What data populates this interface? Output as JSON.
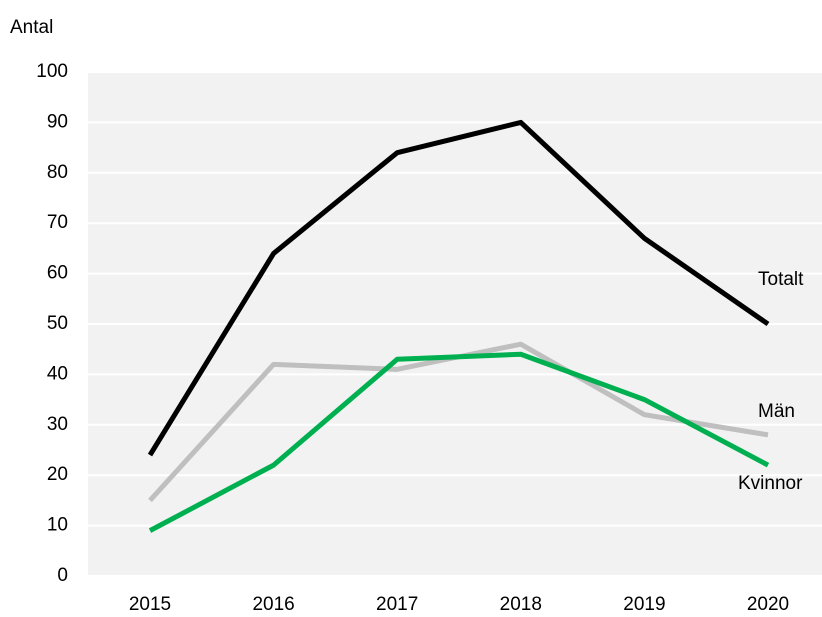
{
  "chart_data": {
    "type": "line",
    "y_label": "Antal",
    "categories": [
      "2015",
      "2016",
      "2017",
      "2018",
      "2019",
      "2020"
    ],
    "series": [
      {
        "name": "Totalt",
        "color": "#000000",
        "values": [
          24,
          64,
          84,
          90,
          67,
          50
        ]
      },
      {
        "name": "Män",
        "color": "#bfbfbf",
        "values": [
          15,
          42,
          41,
          46,
          32,
          28
        ]
      },
      {
        "name": "Kvinnor",
        "color": "#00b050",
        "values": [
          9,
          22,
          43,
          44,
          35,
          22
        ]
      }
    ],
    "ylim": [
      0,
      100
    ],
    "yticks": [
      0,
      10,
      20,
      30,
      40,
      50,
      60,
      70,
      80,
      90,
      100
    ],
    "grid": true
  }
}
